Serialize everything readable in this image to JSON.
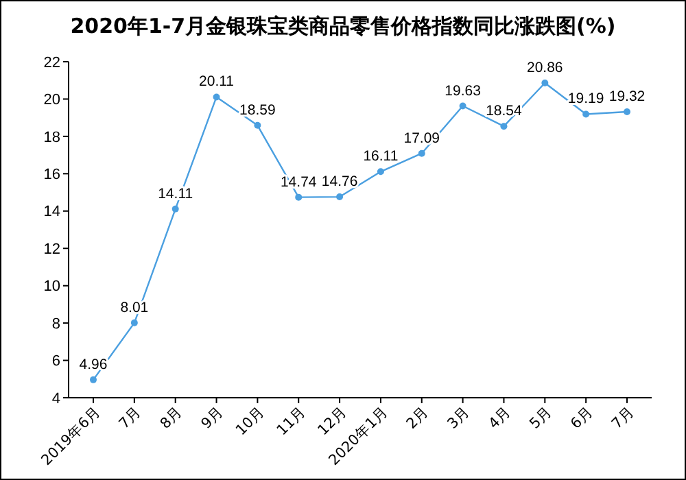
{
  "chart_data": {
    "type": "line",
    "title": "2020年1-7月金银珠宝类商品零售价格指数同比涨跌图(%)",
    "categories": [
      "2019年6月",
      "7月",
      "8月",
      "9月",
      "10月",
      "11月",
      "12月",
      "2020年1月",
      "2月",
      "3月",
      "4月",
      "5月",
      "6月",
      "7月"
    ],
    "series": [
      {
        "color": "#4a9fe0",
        "values": [
          4.96,
          8.01,
          14.11,
          20.11,
          18.59,
          14.74,
          14.76,
          16.11,
          17.09,
          19.63,
          18.54,
          20.86,
          19.19,
          19.32
        ]
      }
    ],
    "ylim": [
      4,
      22
    ],
    "yticks": [
      4,
      6,
      8,
      10,
      12,
      14,
      16,
      18,
      20,
      22
    ],
    "grid": false,
    "marker": "circle",
    "line_style": "solid",
    "data_labels": true
  }
}
